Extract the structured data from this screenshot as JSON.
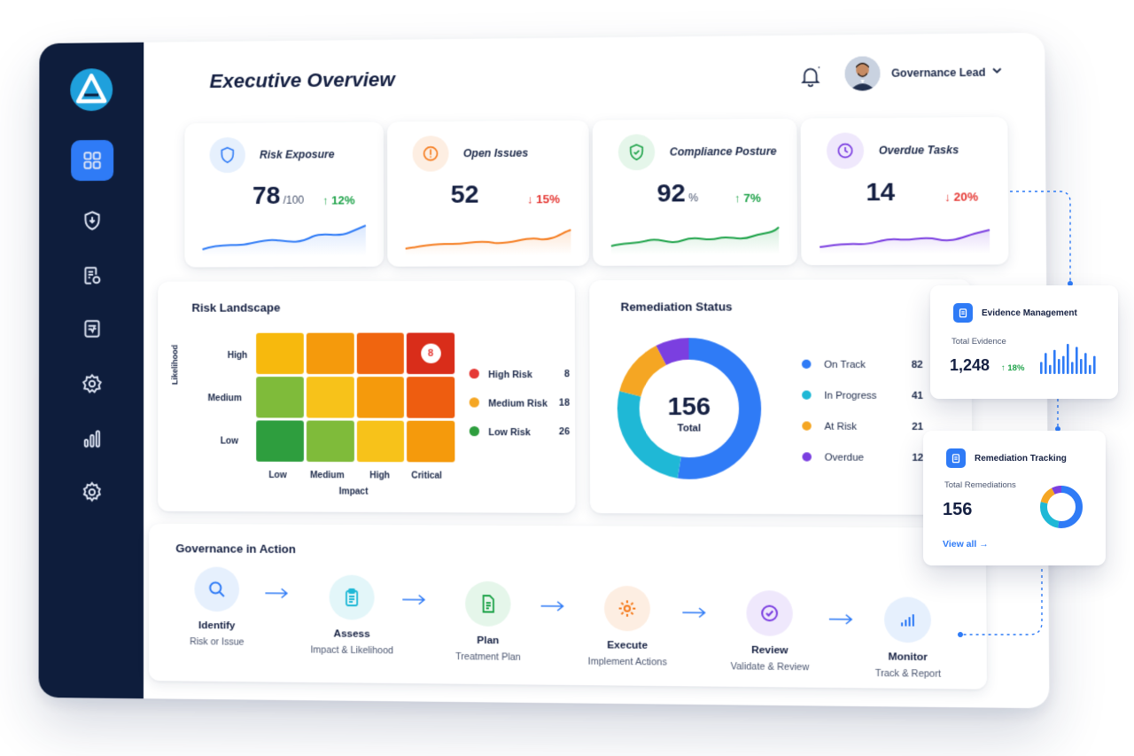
{
  "header": {
    "title": "Executive Overview",
    "user_name": "Governance Lead"
  },
  "kpis": [
    {
      "label": "Risk Exposure",
      "value": "78",
      "unit": "/100",
      "delta": "↑ 12%",
      "trend": "up",
      "color": "#2f7bf6",
      "icon": "shield-icon"
    },
    {
      "label": "Open Issues",
      "value": "52",
      "unit": "",
      "delta": "↓ 15%",
      "trend": "down",
      "color": "#f57c1f",
      "icon": "alert-circle-icon"
    },
    {
      "label": "Compliance Posture",
      "value": "92",
      "unit": "%",
      "delta": "↑ 7%",
      "trend": "up",
      "color": "#1fa34a",
      "icon": "shield-check-icon"
    },
    {
      "label": "Overdue Tasks",
      "value": "14",
      "unit": "",
      "delta": "↓ 20%",
      "trend": "down",
      "color": "#7b3fe0",
      "icon": "clock-icon"
    }
  ],
  "risk_landscape": {
    "title": "Risk Landscape",
    "y_axis_label": "Likelihood",
    "x_axis_label": "Impact",
    "y_levels": [
      "High",
      "Medium",
      "Low"
    ],
    "x_levels": [
      "Low",
      "Medium",
      "High",
      "Critical"
    ],
    "highlight_value": "8",
    "legend": [
      {
        "label": "High Risk",
        "count": "8",
        "color": "#e53935"
      },
      {
        "label": "Medium Risk",
        "count": "18",
        "color": "#f5a623"
      },
      {
        "label": "Low Risk",
        "count": "26",
        "color": "#2e9e3e"
      }
    ]
  },
  "remediation_status": {
    "title": "Remediation Status",
    "total": "156",
    "total_label": "Total",
    "segments": [
      {
        "label": "On Track",
        "count": "82",
        "value": 82,
        "color": "#2f7bf6"
      },
      {
        "label": "In Progress",
        "count": "41",
        "value": 41,
        "color": "#1fb8d6"
      },
      {
        "label": "At Risk",
        "count": "21",
        "value": 21,
        "color": "#f5a623"
      },
      {
        "label": "Overdue",
        "count": "12",
        "value": 12,
        "color": "#7b3fe0"
      }
    ]
  },
  "governance": {
    "title": "Governance in Action",
    "steps": [
      {
        "name": "Identify",
        "desc": "Risk or Issue",
        "icon": "search-icon",
        "bg": "#e6f0fd",
        "fg": "#2f7bf6"
      },
      {
        "name": "Assess",
        "desc": "Impact & Likelihood",
        "icon": "clipboard-icon",
        "bg": "#e3f6f9",
        "fg": "#1fb8d6"
      },
      {
        "name": "Plan",
        "desc": "Treatment Plan",
        "icon": "document-icon",
        "bg": "#e5f6ea",
        "fg": "#1fa34a"
      },
      {
        "name": "Execute",
        "desc": "Implement Actions",
        "icon": "gear-icon",
        "bg": "#fdeee2",
        "fg": "#f57c1f"
      },
      {
        "name": "Review",
        "desc": "Validate & Review",
        "icon": "check-circle-icon",
        "bg": "#efe8fc",
        "fg": "#7b3fe0"
      },
      {
        "name": "Monitor",
        "desc": "Track & Report",
        "icon": "bar-chart-icon",
        "bg": "#e6f0fd",
        "fg": "#2f7bf6"
      }
    ]
  },
  "evidence_card": {
    "title": "Evidence Management",
    "sub": "Total Evidence",
    "value": "1,248",
    "delta": "↑ 18%",
    "bars": [
      4,
      7,
      3,
      8,
      5,
      6,
      10,
      4,
      9,
      5,
      7,
      3,
      6
    ]
  },
  "remediation_tracking_card": {
    "title": "Remediation Tracking",
    "sub": "Total Remediations",
    "value": "156",
    "link": "View all →"
  },
  "sidebar": {
    "items": [
      {
        "name": "dashboard-icon",
        "active": true
      },
      {
        "name": "shield-icon",
        "active": false
      },
      {
        "name": "document-settings-icon",
        "active": false
      },
      {
        "name": "report-icon",
        "active": false
      },
      {
        "name": "cog-badge-icon",
        "active": false
      },
      {
        "name": "analytics-icon",
        "active": false
      },
      {
        "name": "settings-icon",
        "active": false
      }
    ]
  },
  "colors": {
    "sidebar": "#0e1d3c",
    "accent": "#2f7bf6"
  }
}
